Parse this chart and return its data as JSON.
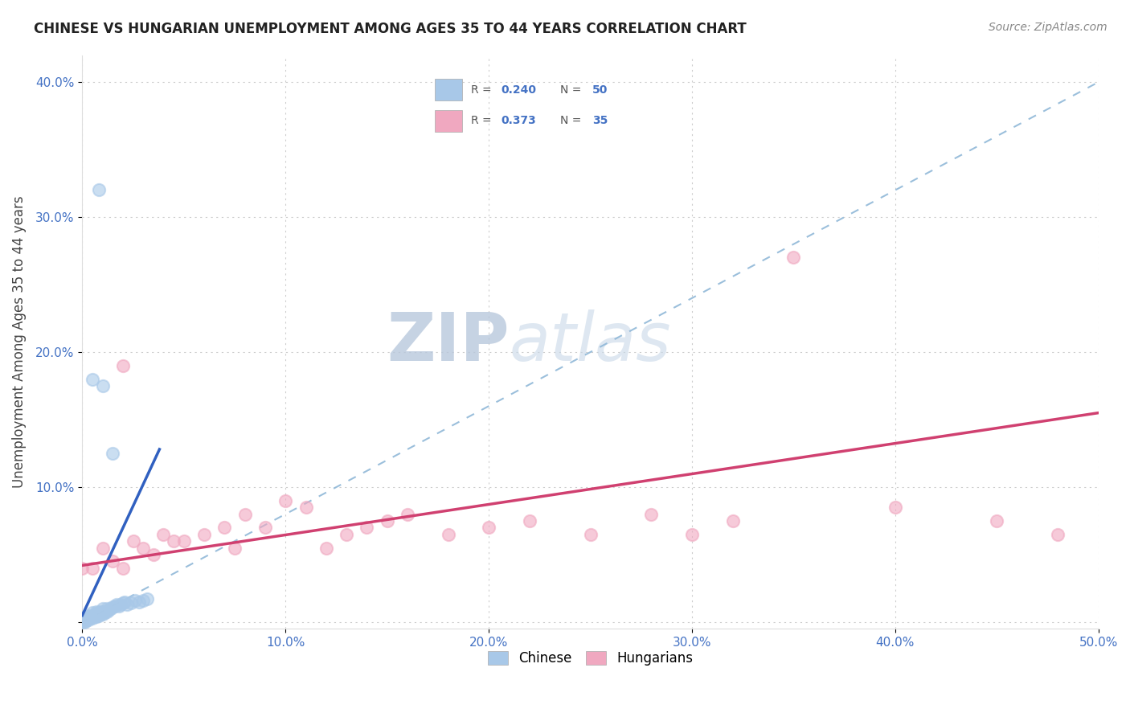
{
  "title": "CHINESE VS HUNGARIAN UNEMPLOYMENT AMONG AGES 35 TO 44 YEARS CORRELATION CHART",
  "source": "Source: ZipAtlas.com",
  "ylabel": "Unemployment Among Ages 35 to 44 years",
  "xlim": [
    0.0,
    0.5
  ],
  "ylim": [
    -0.005,
    0.42
  ],
  "xticks": [
    0.0,
    0.1,
    0.2,
    0.3,
    0.4,
    0.5
  ],
  "xtick_labels": [
    "0.0%",
    "10.0%",
    "20.0%",
    "30.0%",
    "40.0%",
    "50.0%"
  ],
  "yticks": [
    0.0,
    0.1,
    0.2,
    0.3,
    0.4
  ],
  "ytick_labels": [
    "",
    "10.0%",
    "20.0%",
    "30.0%",
    "40.0%"
  ],
  "chinese_color": "#a8c8e8",
  "hungarian_color": "#f0a8c0",
  "chinese_line_color": "#3060c0",
  "hungarian_line_color": "#d04070",
  "legend_label_chinese": "Chinese",
  "legend_label_hungarian": "Hungarians",
  "watermark_zip": "ZIP",
  "watermark_atlas": "atlas",
  "tick_color": "#4472c4",
  "grid_color": "#cccccc",
  "chinese_x": [
    0.0,
    0.0,
    0.001,
    0.001,
    0.001,
    0.002,
    0.002,
    0.002,
    0.003,
    0.003,
    0.003,
    0.004,
    0.004,
    0.005,
    0.005,
    0.005,
    0.006,
    0.006,
    0.007,
    0.007,
    0.007,
    0.008,
    0.008,
    0.009,
    0.009,
    0.01,
    0.01,
    0.01,
    0.011,
    0.012,
    0.012,
    0.013,
    0.014,
    0.015,
    0.016,
    0.017,
    0.018,
    0.019,
    0.02,
    0.021,
    0.022,
    0.024,
    0.026,
    0.028,
    0.03,
    0.032,
    0.01,
    0.008,
    0.005,
    0.015
  ],
  "chinese_y": [
    0.0,
    0.001,
    0.0,
    0.002,
    0.003,
    0.001,
    0.002,
    0.004,
    0.002,
    0.003,
    0.005,
    0.003,
    0.004,
    0.003,
    0.005,
    0.007,
    0.004,
    0.006,
    0.004,
    0.006,
    0.008,
    0.005,
    0.007,
    0.006,
    0.008,
    0.006,
    0.008,
    0.01,
    0.007,
    0.008,
    0.01,
    0.009,
    0.01,
    0.011,
    0.012,
    0.013,
    0.012,
    0.013,
    0.014,
    0.015,
    0.013,
    0.014,
    0.016,
    0.015,
    0.016,
    0.017,
    0.175,
    0.32,
    0.18,
    0.125
  ],
  "hungarian_x": [
    0.0,
    0.005,
    0.01,
    0.015,
    0.02,
    0.025,
    0.03,
    0.035,
    0.04,
    0.045,
    0.05,
    0.06,
    0.07,
    0.075,
    0.08,
    0.09,
    0.1,
    0.11,
    0.12,
    0.13,
    0.14,
    0.15,
    0.16,
    0.18,
    0.2,
    0.22,
    0.25,
    0.28,
    0.3,
    0.32,
    0.35,
    0.4,
    0.45,
    0.48,
    0.02
  ],
  "hungarian_y": [
    0.04,
    0.04,
    0.055,
    0.045,
    0.04,
    0.06,
    0.055,
    0.05,
    0.065,
    0.06,
    0.06,
    0.065,
    0.07,
    0.055,
    0.08,
    0.07,
    0.09,
    0.085,
    0.055,
    0.065,
    0.07,
    0.075,
    0.08,
    0.065,
    0.07,
    0.075,
    0.065,
    0.08,
    0.065,
    0.075,
    0.27,
    0.085,
    0.075,
    0.065,
    0.19
  ],
  "chinese_line_x": [
    0.0,
    0.038
  ],
  "chinese_line_y": [
    0.005,
    0.128
  ],
  "hungarian_line_x": [
    0.0,
    0.5
  ],
  "hungarian_line_y": [
    0.042,
    0.155
  ],
  "diag_line_x": [
    0.0,
    0.5
  ],
  "diag_line_y": [
    0.0,
    0.4
  ]
}
